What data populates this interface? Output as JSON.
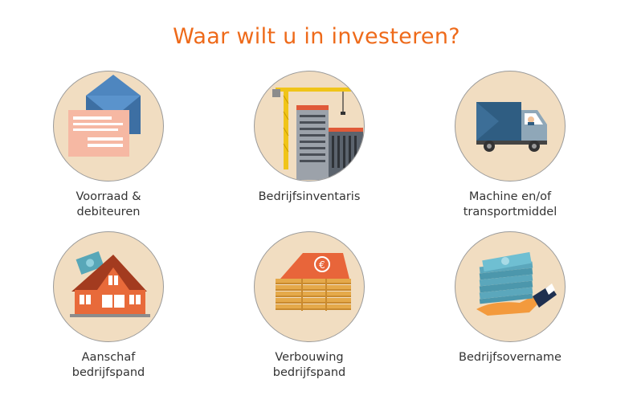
{
  "heading": "Waar wilt u in investeren?",
  "colors": {
    "accent": "#ee6a1a",
    "circle_fill": "#f1ddc1",
    "circle_border": "#9a9a9a",
    "label_text": "#333333"
  },
  "options": [
    {
      "label": "Voorraad &\ndebiteuren",
      "icon": "envelope-invoice-icon"
    },
    {
      "label": "Bedrijfsinventaris",
      "icon": "construction-crane-icon"
    },
    {
      "label": "Machine en/of\ntransportmiddel",
      "icon": "delivery-truck-icon"
    },
    {
      "label": "Aanschaf\nbedrijfspand",
      "icon": "house-icon"
    },
    {
      "label": "Verbouwing\nbedrijfspand",
      "icon": "money-building-icon"
    },
    {
      "label": "Bedrijfsovername",
      "icon": "money-stack-hand-icon"
    }
  ]
}
